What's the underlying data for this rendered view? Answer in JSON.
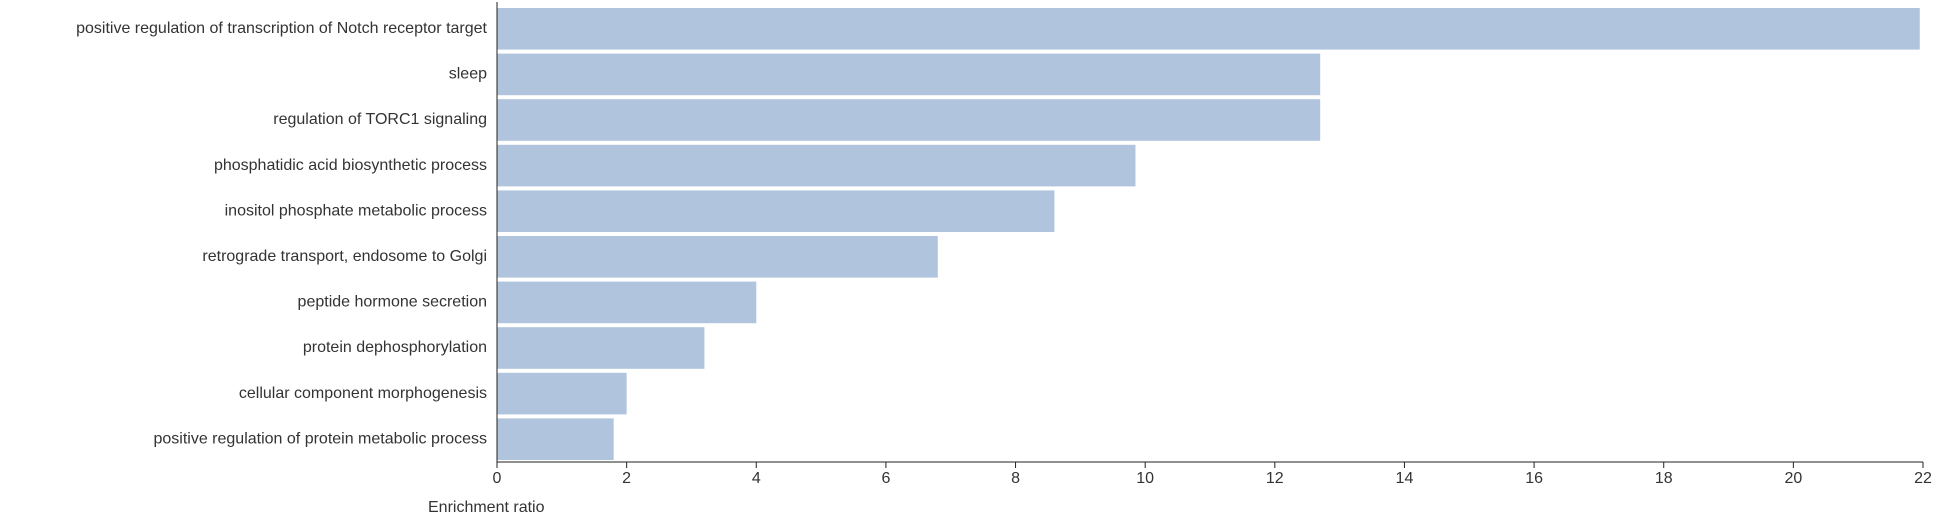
{
  "chart_data": {
    "type": "hbar",
    "x_label": "Enrichment ratio",
    "categories": [
      "positive regulation of transcription of Notch receptor target",
      "sleep",
      "regulation of TORC1 signaling",
      "phosphatidic acid biosynthetic process",
      "inositol phosphate metabolic process",
      "retrograde transport, endosome to Golgi",
      "peptide hormone secretion",
      "protein dephosphorylation",
      "cellular component morphogenesis",
      "positive regulation of protein metabolic process"
    ],
    "values": [
      21.95,
      12.7,
      12.7,
      9.85,
      8.6,
      6.8,
      4.0,
      3.2,
      2.0,
      1.8
    ],
    "color": "#b0c4de",
    "xlim": [
      0,
      22
    ],
    "xticks": [
      0,
      2,
      4,
      6,
      8,
      10,
      12,
      14,
      16,
      18,
      20,
      22
    ]
  }
}
